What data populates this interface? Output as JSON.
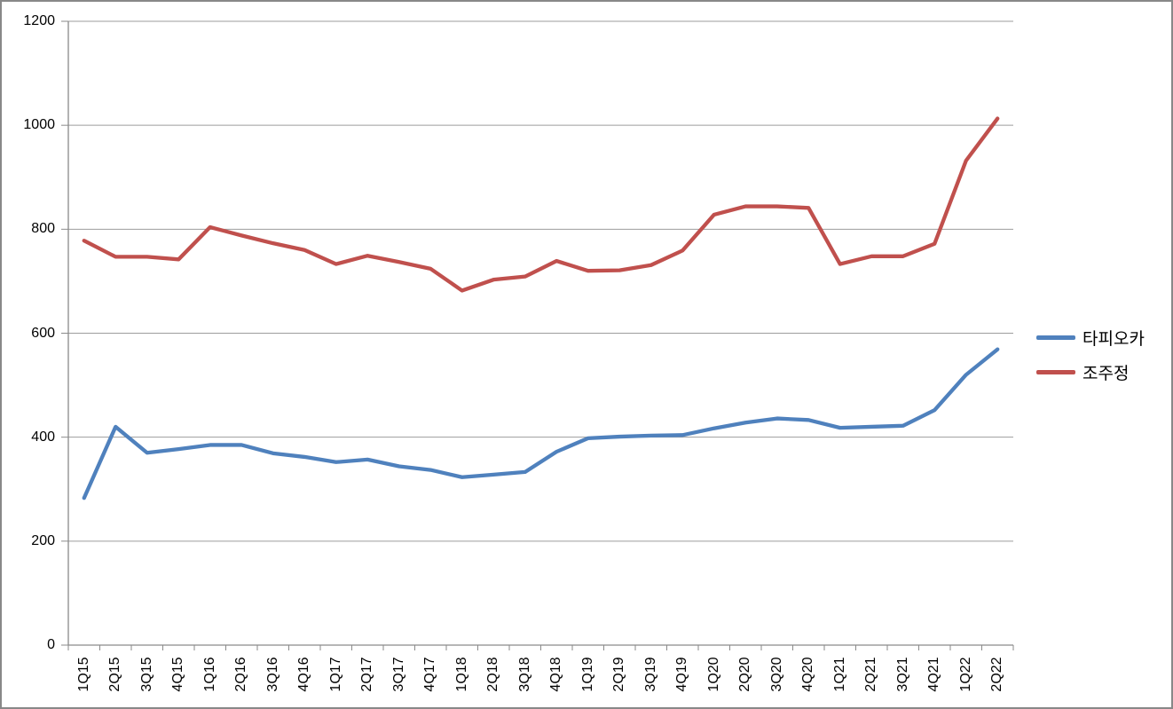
{
  "chart_data": {
    "type": "line",
    "title": "",
    "xlabel": "",
    "ylabel": "",
    "categories": [
      "1Q15",
      "2Q15",
      "3Q15",
      "4Q15",
      "1Q16",
      "2Q16",
      "3Q16",
      "4Q16",
      "1Q17",
      "2Q17",
      "3Q17",
      "4Q17",
      "1Q18",
      "2Q18",
      "3Q18",
      "4Q18",
      "1Q19",
      "2Q19",
      "3Q19",
      "4Q19",
      "1Q20",
      "2Q20",
      "3Q20",
      "4Q20",
      "1Q21",
      "2Q21",
      "3Q21",
      "4Q21",
      "1Q22",
      "2Q22"
    ],
    "series": [
      {
        "name": "타피오카",
        "color": "#4F81BD",
        "values": [
          283,
          420,
          370,
          377,
          385,
          385,
          369,
          362,
          352,
          357,
          344,
          337,
          323,
          328,
          333,
          372,
          398,
          401,
          403,
          404,
          417,
          428,
          436,
          433,
          418,
          420,
          422,
          452,
          520,
          569
        ]
      },
      {
        "name": "조주정",
        "color": "#C0504D",
        "values": [
          778,
          747,
          747,
          742,
          804,
          788,
          773,
          760,
          733,
          749,
          737,
          724,
          682,
          703,
          709,
          739,
          720,
          721,
          731,
          759,
          828,
          844,
          844,
          841,
          733,
          748,
          748,
          772,
          932,
          1013
        ]
      }
    ],
    "ylim": [
      0,
      1200
    ],
    "yticks": [
      0,
      200,
      400,
      600,
      800,
      1000,
      1200
    ],
    "ytick_labels": [
      "0",
      "200",
      "400",
      "600",
      "800",
      "1000",
      "1200"
    ],
    "grid": true,
    "legend_position": "right",
    "grid_color": "#9d9d9d",
    "axis_color": "#8a8a8a",
    "frame_border_color": "#888888"
  }
}
